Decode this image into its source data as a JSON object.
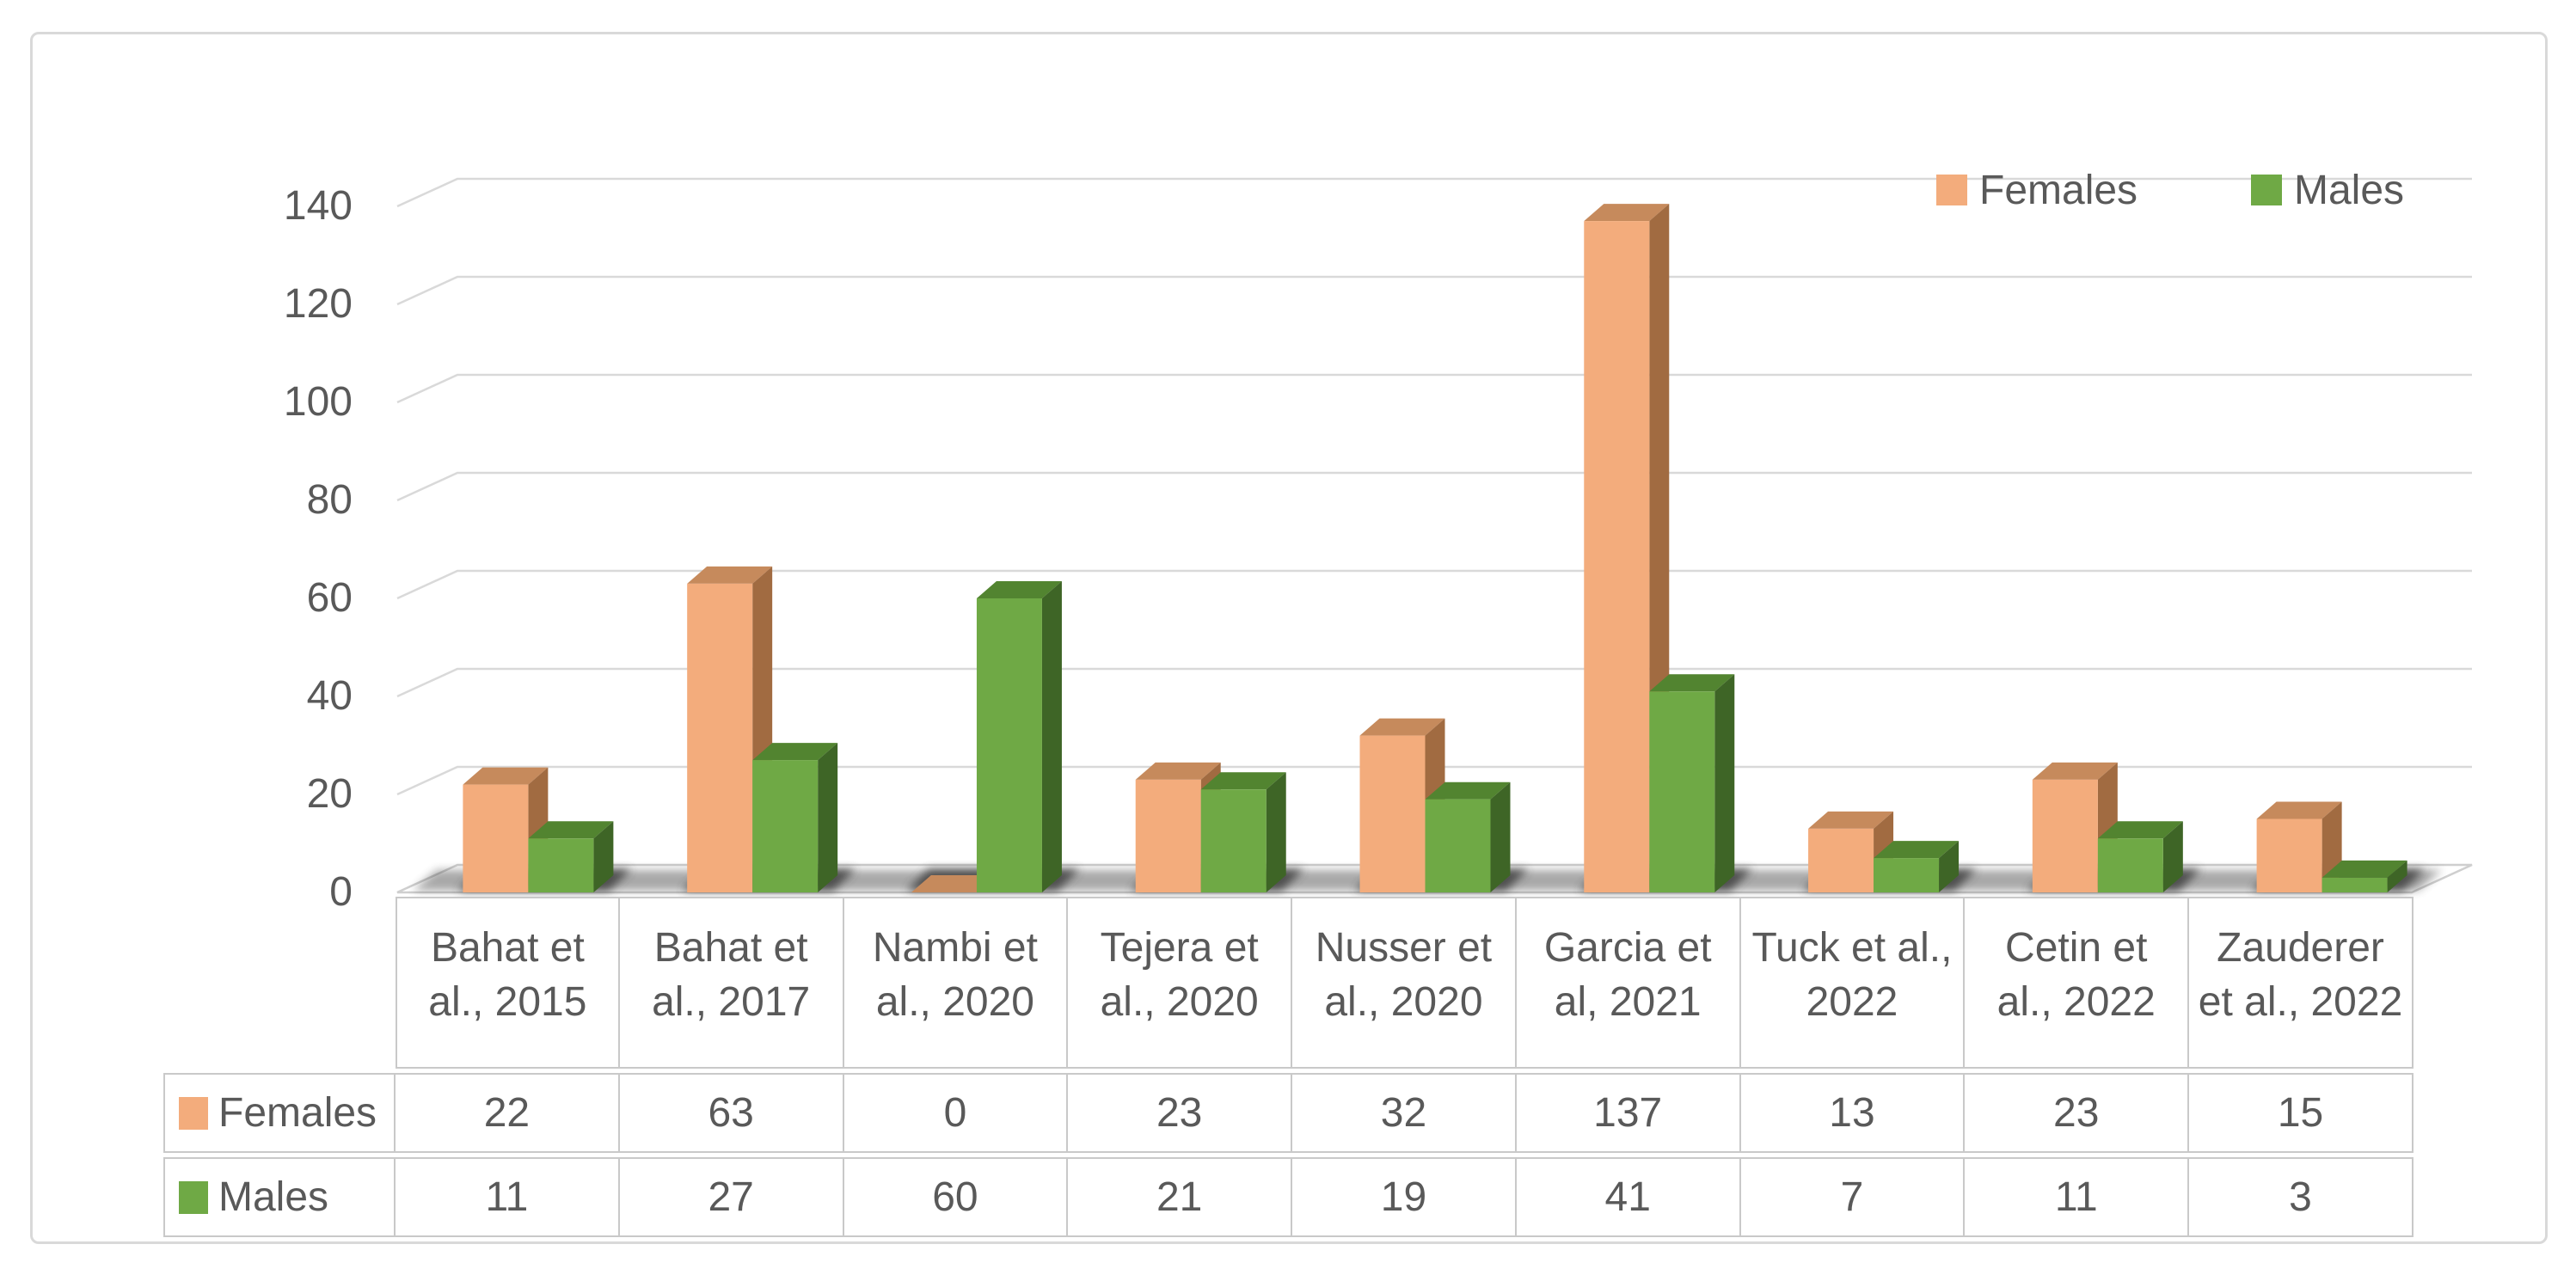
{
  "chart_data": {
    "type": "bar",
    "style": "3d-clustered-column",
    "title": "",
    "xlabel": "",
    "ylabel": "",
    "categories": [
      "Bahat et al., 2015",
      "Bahat et al., 2017",
      "Nambi et al., 2020",
      "Tejera et al., 2020",
      "Nusser et al., 2020",
      "Garcia et al, 2021",
      "Tuck et al., 2022",
      "Cetin et al., 2022",
      "Zauderer et al., 2022"
    ],
    "series": [
      {
        "name": "Females",
        "values": [
          22,
          63,
          0,
          23,
          32,
          137,
          13,
          23,
          15
        ],
        "color_front": "#F3AC7C",
        "color_top": "#C68A5C",
        "color_side": "#A16B41"
      },
      {
        "name": "Males",
        "values": [
          11,
          27,
          60,
          21,
          19,
          41,
          7,
          11,
          3
        ],
        "color_front": "#6FA945",
        "color_top": "#528430",
        "color_side": "#3E6526"
      }
    ],
    "y_axis": {
      "min": 0,
      "max": 140,
      "step": 20,
      "tick_labels": [
        "0",
        "20",
        "40",
        "60",
        "80",
        "100",
        "120",
        "140"
      ]
    },
    "legend": {
      "position": "top-right",
      "entries": [
        "Females",
        "Males"
      ]
    },
    "gridlines": true,
    "data_table_shown": true
  },
  "colors": {
    "text": "#595959",
    "gridline": "#d9d9d9",
    "table_border": "#c9c9c9",
    "figure_border": "#d9d9d9",
    "floor_fill": "#ffffff",
    "floor_edge": "#cfcfcf",
    "shadow": "#3f3f3f"
  }
}
